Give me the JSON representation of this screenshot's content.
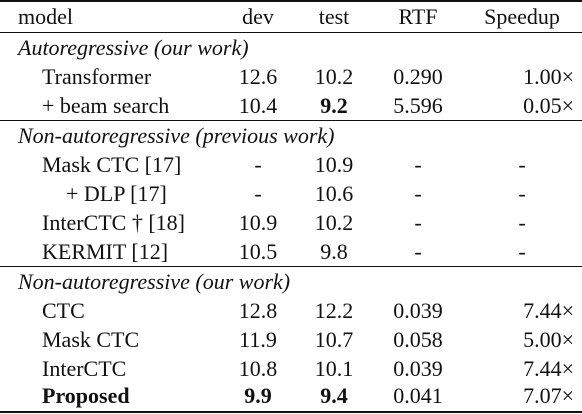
{
  "header": {
    "model": "model",
    "dev": "dev",
    "test": "test",
    "rtf": "RTF",
    "speedup": "Speedup"
  },
  "sections": [
    {
      "title": "Autoregressive (our work)",
      "rows": [
        {
          "model": "Transformer",
          "dev": "12.6",
          "test": "10.2",
          "rtf": "0.290",
          "speedup": "1.00×"
        },
        {
          "model": "+ beam search",
          "dev": "10.4",
          "test": "9.2",
          "rtf": "5.596",
          "speedup": "0.05×"
        }
      ]
    },
    {
      "title": "Non-autoregressive (previous work)",
      "rows": [
        {
          "model": "Mask CTC [17]",
          "dev": "-",
          "test": "10.9",
          "rtf": "-",
          "speedup": "-"
        },
        {
          "model": "+ DLP [17]",
          "dev": "-",
          "test": "10.6",
          "rtf": "-",
          "speedup": "-"
        },
        {
          "model": "InterCTC † [18]",
          "dev": "10.9",
          "test": "10.2",
          "rtf": "-",
          "speedup": "-"
        },
        {
          "model": "KERMIT [12]",
          "dev": "10.5",
          "test": "9.8",
          "rtf": "-",
          "speedup": "-"
        }
      ]
    },
    {
      "title": "Non-autoregressive (our work)",
      "rows": [
        {
          "model": "CTC",
          "dev": "12.8",
          "test": "12.2",
          "rtf": "0.039",
          "speedup": "7.44×"
        },
        {
          "model": "Mask CTC",
          "dev": "11.9",
          "test": "10.7",
          "rtf": "0.058",
          "speedup": "5.00×"
        },
        {
          "model": "InterCTC",
          "dev": "10.8",
          "test": "10.1",
          "rtf": "0.039",
          "speedup": "7.44×"
        },
        {
          "model": "Proposed",
          "dev": "9.9",
          "test": "9.4",
          "rtf": "0.041",
          "speedup": "7.07×"
        }
      ]
    }
  ]
}
